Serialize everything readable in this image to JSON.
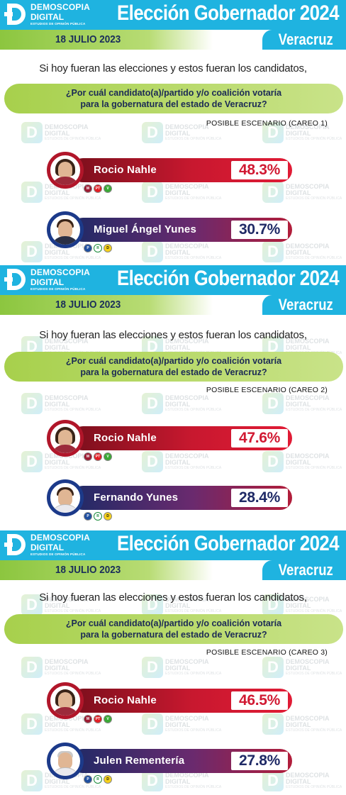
{
  "brand": {
    "line1": "DEMOSCOPIA",
    "line2": "DIGITAL",
    "tagline": "ESTUDIOS DE OPINIÓN PÚBLICA"
  },
  "watermark": {
    "line1": "DEMOSCOPIA",
    "line2": "DIGITAL",
    "line3": "ESTUDIOS DE OPINIÓN PÚBLICA"
  },
  "colors": {
    "header_blue": "#1fb3e0",
    "green": "#8cc63f",
    "red": "#c8182f",
    "navy": "#1f2a66"
  },
  "panels": [
    {
      "title": "Elección Gobernador 2024",
      "date": "18 JULIO 2023",
      "state": "Veracruz",
      "intro": "Si hoy fueran las elecciones y estos fueran los candidatos,",
      "question_line1": "¿Por cuál candidato(a)/partido y/o coalición votaría",
      "question_line2": "para la gobernatura del estado de Veracruz?",
      "scenario": "POSIBLE ESCENARIO (CAREO 1)",
      "candidates": [
        {
          "name": "Rocio Nahle",
          "percent": "48.3%",
          "parties": [
            "morena-icon",
            "pt-icon",
            "pvem-icon"
          ]
        },
        {
          "name": "Miguel Ángel Yunes",
          "percent": "30.7%",
          "parties": [
            "pan-icon",
            "pri-icon",
            "prd-icon"
          ]
        }
      ]
    },
    {
      "title": "Elección Gobernador 2024",
      "date": "18 JULIO 2023",
      "state": "Veracruz",
      "intro": "Si hoy fueran las elecciones y estos fueran los candidatos,",
      "question_line1": "¿Por cuál candidato(a)/partido y/o coalición votaría",
      "question_line2": "para la gobernatura del estado de Veracruz?",
      "scenario": "POSIBLE ESCENARIO (CAREO 2)",
      "candidates": [
        {
          "name": "Rocio Nahle",
          "percent": "47.6%",
          "parties": [
            "morena-icon",
            "pt-icon",
            "pvem-icon"
          ]
        },
        {
          "name": "Fernando Yunes",
          "percent": "28.4%",
          "parties": [
            "pan-icon",
            "pri-icon",
            "prd-icon"
          ]
        }
      ]
    },
    {
      "title": "Elección Gobernador 2024",
      "date": "18 JULIO 2023",
      "state": "Veracruz",
      "intro": "Si hoy fueran las elecciones y estos fueran los candidatos,",
      "question_line1": "¿Por cuál candidato(a)/partido y/o coalición votaría",
      "question_line2": "para la gobernatura del estado de Veracruz?",
      "scenario": "POSIBLE ESCENARIO (CAREO 3)",
      "candidates": [
        {
          "name": "Rocio Nahle",
          "percent": "46.5%",
          "parties": [
            "morena-icon",
            "pt-icon",
            "pvem-icon"
          ]
        },
        {
          "name": "Julen Rementería",
          "percent": "27.8%",
          "parties": [
            "pan-icon",
            "pri-icon",
            "prd-icon"
          ]
        }
      ]
    }
  ]
}
